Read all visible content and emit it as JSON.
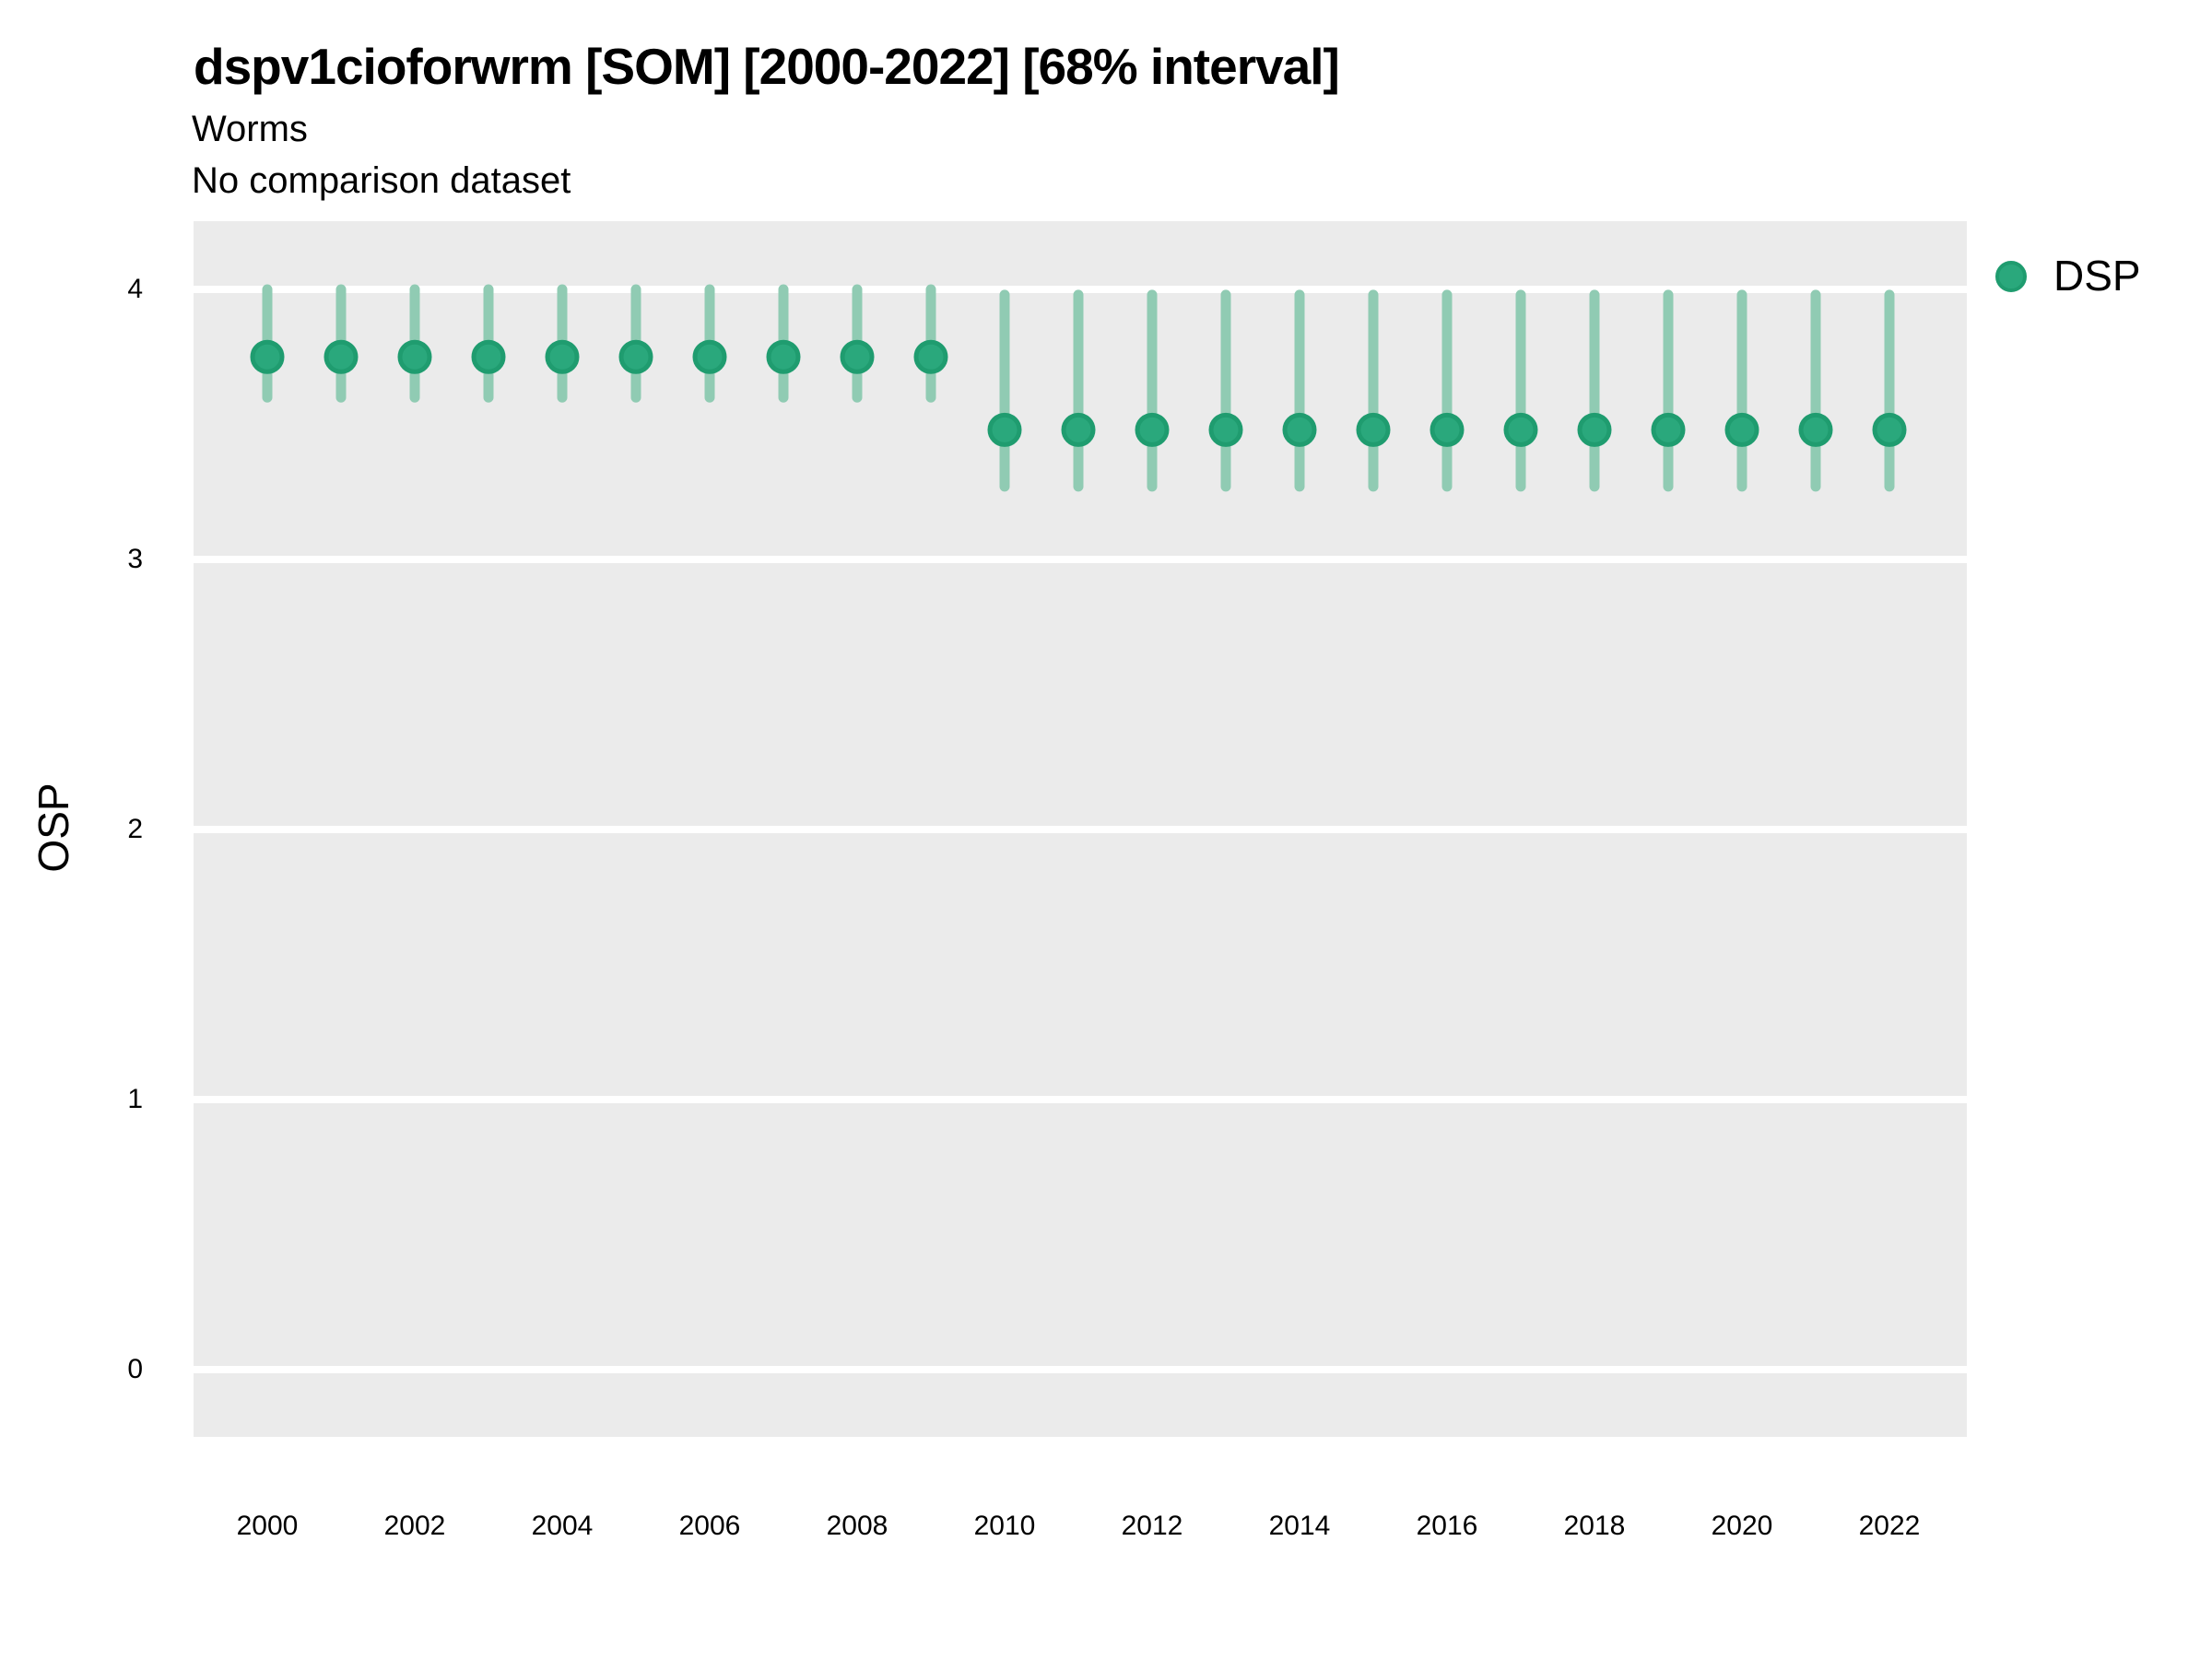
{
  "header": {
    "title": "dspv1cioforwrm [SOM] [2000-2022] [68% interval]",
    "subtitle": "Worms",
    "comparison_note": "No comparison dataset"
  },
  "y_axis": {
    "label": "OSP"
  },
  "legend": {
    "items": [
      {
        "label": "DSP",
        "symbol": "circle"
      }
    ]
  },
  "colors": {
    "point_fill": "#2AA87C",
    "point_stroke": "#1F9C6F",
    "interval_line": "#90CBB3",
    "panel_background": "#EBEBEB",
    "gridline": "#FFFFFF",
    "text": "#000000"
  },
  "chart_data": {
    "type": "scatter",
    "subtype": "pointrange",
    "title": "dspv1cioforwrm [SOM] [2000-2022] [68% interval]",
    "subtitle": "Worms",
    "annotation": "No comparison dataset",
    "interval": "68%",
    "xlabel": "",
    "ylabel": "OSP",
    "xlim": [
      1999,
      2023.05
    ],
    "ylim": [
      -0.25,
      4.25
    ],
    "x_ticks": [
      2000,
      2002,
      2004,
      2006,
      2008,
      2010,
      2012,
      2014,
      2016,
      2018,
      2020,
      2022
    ],
    "y_ticks": [
      0,
      1,
      2,
      3,
      4
    ],
    "grid": "horizontal-major-only",
    "legend_position": "right",
    "series": [
      {
        "name": "DSP",
        "x": [
          2000,
          2001,
          2002,
          2003,
          2004,
          2005,
          2006,
          2007,
          2008,
          2009,
          2010,
          2011,
          2012,
          2013,
          2014,
          2015,
          2016,
          2017,
          2018,
          2019,
          2020,
          2021,
          2022
        ],
        "y": [
          3.75,
          3.75,
          3.75,
          3.75,
          3.75,
          3.75,
          3.75,
          3.75,
          3.75,
          3.75,
          3.48,
          3.48,
          3.48,
          3.48,
          3.48,
          3.48,
          3.48,
          3.48,
          3.48,
          3.48,
          3.48,
          3.48,
          3.48
        ],
        "ymin": [
          3.6,
          3.6,
          3.6,
          3.6,
          3.6,
          3.6,
          3.6,
          3.6,
          3.6,
          3.6,
          3.27,
          3.27,
          3.27,
          3.27,
          3.27,
          3.27,
          3.27,
          3.27,
          3.27,
          3.27,
          3.27,
          3.27,
          3.27
        ],
        "ymax": [
          4.0,
          4.0,
          4.0,
          4.0,
          4.0,
          4.0,
          4.0,
          4.0,
          4.0,
          4.0,
          3.98,
          3.98,
          3.98,
          3.98,
          3.98,
          3.98,
          3.98,
          3.98,
          3.98,
          3.98,
          3.98,
          3.98,
          3.98
        ]
      }
    ]
  }
}
